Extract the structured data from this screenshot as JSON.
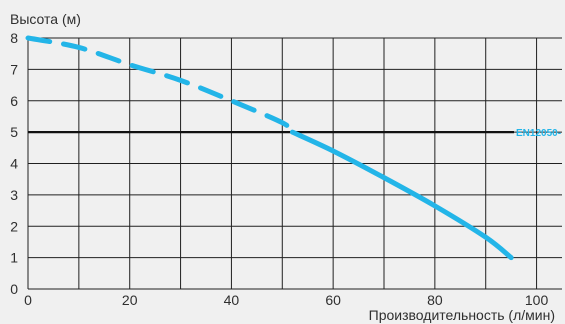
{
  "chart_data": {
    "type": "line",
    "title": "",
    "xlabel": "Производительность (л/мин)",
    "ylabel": "Высота (м)",
    "xlim": [
      0,
      105
    ],
    "ylim": [
      0,
      8
    ],
    "x_ticks": [
      0,
      20,
      40,
      60,
      80,
      100
    ],
    "y_ticks": [
      0,
      1,
      2,
      3,
      4,
      5,
      6,
      7,
      8
    ],
    "grid": true,
    "series": [
      {
        "segments": [
          {
            "style": "dashed",
            "x": [
              0,
              10,
              20,
              30,
              40,
              50,
              52
            ],
            "y": [
              8.0,
              7.7,
              7.15,
              6.65,
              6.0,
              5.3,
              5.0
            ]
          },
          {
            "style": "solid",
            "x": [
              52,
              60,
              70,
              80,
              90,
              95
            ],
            "y": [
              5.0,
              4.4,
              3.55,
              2.65,
              1.65,
              1.0
            ]
          }
        ]
      }
    ],
    "reference_lines": [
      {
        "y": 5,
        "label": "EN12050-"
      }
    ],
    "colors": {
      "background": "#f0f0f0",
      "grid": "#202020",
      "curve": "#23b5e8",
      "reference_line": "#111111",
      "reference_label": "#23b5e8"
    }
  }
}
